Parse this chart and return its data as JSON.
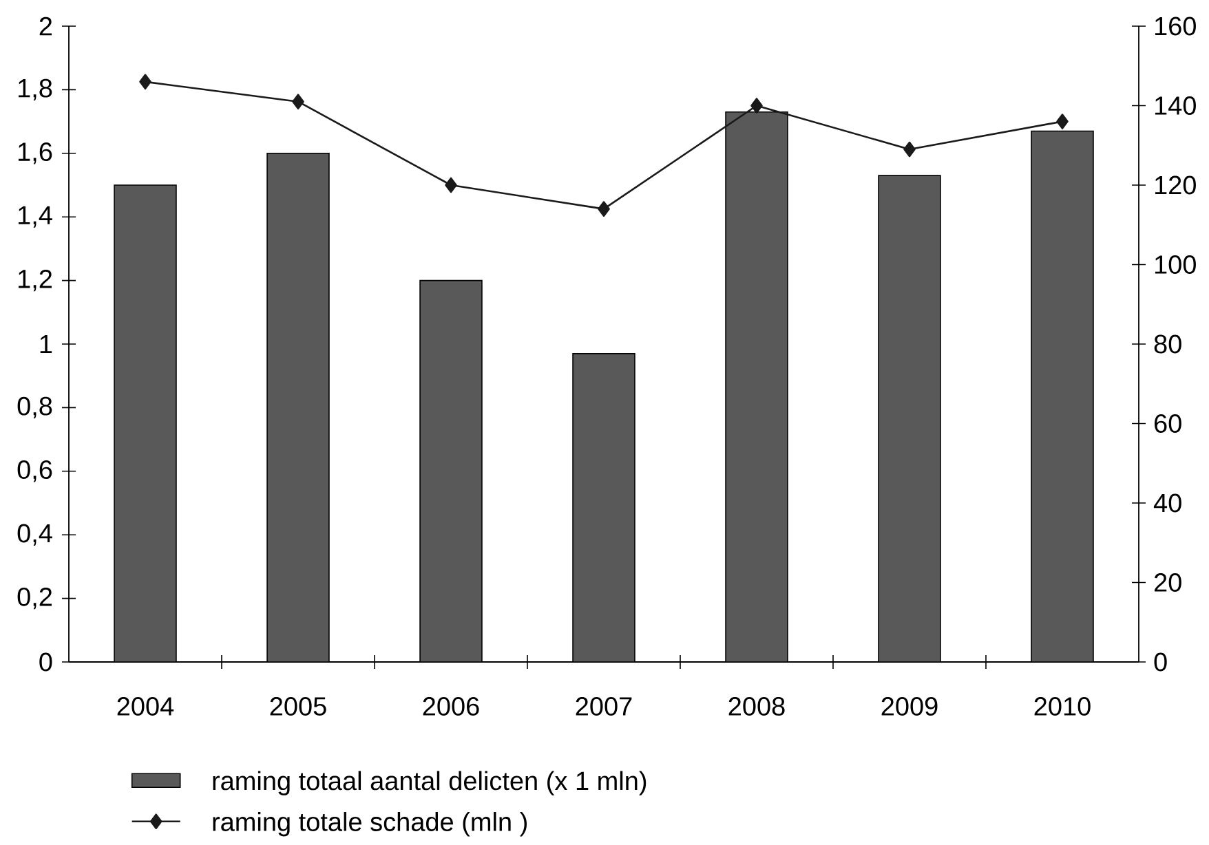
{
  "chart_data": {
    "type": "bar",
    "categories": [
      "2004",
      "2005",
      "2006",
      "2007",
      "2008",
      "2009",
      "2010"
    ],
    "series": [
      {
        "name": "raming totaal aantal delicten (x 1 mln)",
        "color": "#595959",
        "values": [
          1.5,
          1.6,
          1.2,
          0.97,
          1.73,
          1.53,
          1.67
        ]
      },
      {
        "name": "raming totale schade (mln )",
        "type": "line",
        "axis": "y2",
        "color": "#1a1a1a",
        "marker": "diamond",
        "values": [
          146,
          141,
          120,
          114,
          140,
          129,
          136
        ]
      }
    ],
    "ylim": [
      0,
      2
    ],
    "yticks": [
      0,
      {
        "value": 0.2,
        "label": "0,2"
      },
      {
        "value": 0.4,
        "label": "0,4"
      },
      {
        "value": 0.6,
        "label": "0,6"
      },
      {
        "value": 0.8,
        "label": "0,8"
      },
      1,
      {
        "value": 1.2,
        "label": "1,2"
      },
      {
        "value": 1.4,
        "label": "1,4"
      },
      {
        "value": 1.6,
        "label": "1,6"
      },
      {
        "value": 1.8,
        "label": "1,8"
      },
      2
    ],
    "y2lim": [
      0,
      160
    ],
    "y2ticks": [
      0,
      20,
      40,
      60,
      80,
      100,
      120,
      140,
      160
    ],
    "legend": "bottom"
  }
}
